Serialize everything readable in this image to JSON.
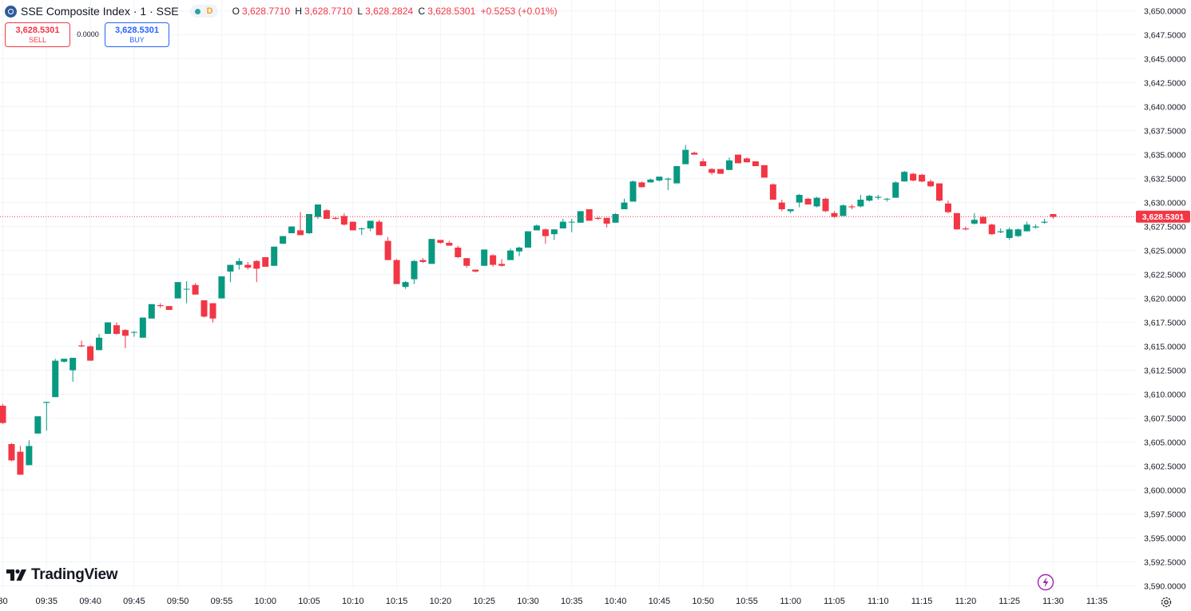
{
  "symbol": {
    "title": "SSE Composite Index · 1 · SSE",
    "market_badge": "D",
    "o_label": "O",
    "o_value": "3,628.7710",
    "h_label": "H",
    "h_value": "3,628.7710",
    "l_label": "L",
    "l_value": "3,628.2824",
    "c_label": "C",
    "c_value": "3,628.5301",
    "change": "+0.5253 (+0.01%)"
  },
  "trade": {
    "sell_price": "3,628.5301",
    "sell_label": "SELL",
    "spread": "0.0000",
    "buy_price": "3,628.5301",
    "buy_label": "BUY"
  },
  "branding": {
    "logo_text": "TradingView"
  },
  "icons": [
    "tradingview-logo-icon",
    "lightning-icon",
    "settings-gear-icon",
    "symbol-logo-icon"
  ],
  "colors": {
    "up": "#089981",
    "down": "#f23645",
    "last_price": "#f23645",
    "grid": "#f0f3fa",
    "buy": "#2962ff",
    "lightning": "#9c27b0"
  },
  "chart_data": {
    "type": "candlestick",
    "interval": "1 minute",
    "y_axis": {
      "min": 3588.5,
      "max": 3650.0,
      "tick_labels": [
        "3,650.0000",
        "3,647.5000",
        "3,645.0000",
        "3,642.5000",
        "3,640.0000",
        "3,637.5000",
        "3,635.0000",
        "3,632.5000",
        "3,630.0000",
        "3,627.5000",
        "3,625.0000",
        "3,622.5000",
        "3,620.0000",
        "3,617.5000",
        "3,615.0000",
        "3,612.5000",
        "3,610.0000",
        "3,607.5000",
        "3,605.0000",
        "3,602.5000",
        "3,600.0000",
        "3,597.5000",
        "3,595.0000",
        "3,592.5000",
        "3,590.0000"
      ]
    },
    "x_axis": {
      "tick_labels": [
        "30",
        "09:35",
        "09:40",
        "09:45",
        "09:50",
        "09:55",
        "10:00",
        "10:05",
        "10:10",
        "10:15",
        "10:20",
        "10:25",
        "10:30",
        "10:35",
        "10:40",
        "10:45",
        "10:50",
        "10:55",
        "11:00",
        "11:05",
        "11:10",
        "11:15",
        "11:20",
        "11:25",
        "11:30",
        "11:35"
      ]
    },
    "last_price": 3628.5301,
    "last_price_label": "3,628.5301",
    "grid": true,
    "candles": [
      {
        "t": "09:30",
        "o": 3608.8,
        "h": 3609.0,
        "l": 3606.9,
        "c": 3607.0
      },
      {
        "t": "09:31",
        "o": 3604.8,
        "h": 3604.9,
        "l": 3603.0,
        "c": 3603.1
      },
      {
        "t": "09:32",
        "o": 3604.0,
        "h": 3604.6,
        "l": 3601.6,
        "c": 3601.6
      },
      {
        "t": "09:33",
        "o": 3602.6,
        "h": 3605.2,
        "l": 3602.6,
        "c": 3604.6
      },
      {
        "t": "09:34",
        "o": 3605.9,
        "h": 3607.7,
        "l": 3605.9,
        "c": 3607.7
      },
      {
        "t": "09:35",
        "o": 3609.1,
        "h": 3609.2,
        "l": 3606.2,
        "c": 3609.2
      },
      {
        "t": "09:36",
        "o": 3609.7,
        "h": 3613.7,
        "l": 3609.7,
        "c": 3613.5
      },
      {
        "t": "09:37",
        "o": 3613.4,
        "h": 3613.7,
        "l": 3613.3,
        "c": 3613.7
      },
      {
        "t": "09:38",
        "o": 3612.5,
        "h": 3613.8,
        "l": 3611.3,
        "c": 3613.8
      },
      {
        "t": "09:39",
        "o": 3615.1,
        "h": 3615.6,
        "l": 3614.9,
        "c": 3615.0
      },
      {
        "t": "09:40",
        "o": 3615.0,
        "h": 3615.1,
        "l": 3613.5,
        "c": 3613.5
      },
      {
        "t": "09:41",
        "o": 3614.6,
        "h": 3616.3,
        "l": 3614.6,
        "c": 3615.9
      },
      {
        "t": "09:42",
        "o": 3616.3,
        "h": 3617.5,
        "l": 3616.3,
        "c": 3617.5
      },
      {
        "t": "09:43",
        "o": 3617.2,
        "h": 3617.5,
        "l": 3616.2,
        "c": 3616.3
      },
      {
        "t": "09:44",
        "o": 3616.7,
        "h": 3616.8,
        "l": 3614.8,
        "c": 3616.1
      },
      {
        "t": "09:45",
        "o": 3616.5,
        "h": 3616.6,
        "l": 3616.0,
        "c": 3616.5
      },
      {
        "t": "09:46",
        "o": 3615.9,
        "h": 3618.0,
        "l": 3615.9,
        "c": 3618.0
      },
      {
        "t": "09:47",
        "o": 3617.9,
        "h": 3619.4,
        "l": 3617.9,
        "c": 3619.4
      },
      {
        "t": "09:48",
        "o": 3619.3,
        "h": 3619.5,
        "l": 3619.0,
        "c": 3619.2
      },
      {
        "t": "09:49",
        "o": 3619.2,
        "h": 3619.2,
        "l": 3618.8,
        "c": 3618.8
      },
      {
        "t": "09:50",
        "o": 3620.0,
        "h": 3621.7,
        "l": 3620.0,
        "c": 3621.7
      },
      {
        "t": "09:51",
        "o": 3621.0,
        "h": 3621.8,
        "l": 3619.5,
        "c": 3621.0
      },
      {
        "t": "09:52",
        "o": 3621.4,
        "h": 3621.6,
        "l": 3620.4,
        "c": 3620.4
      },
      {
        "t": "09:53",
        "o": 3619.8,
        "h": 3619.8,
        "l": 3618.0,
        "c": 3618.1
      },
      {
        "t": "09:54",
        "o": 3619.5,
        "h": 3619.5,
        "l": 3617.5,
        "c": 3617.9
      },
      {
        "t": "09:55",
        "o": 3620.0,
        "h": 3622.3,
        "l": 3620.0,
        "c": 3622.3
      },
      {
        "t": "09:56",
        "o": 3622.8,
        "h": 3623.5,
        "l": 3621.7,
        "c": 3623.5
      },
      {
        "t": "09:57",
        "o": 3623.5,
        "h": 3624.2,
        "l": 3623.0,
        "c": 3623.9
      },
      {
        "t": "09:58",
        "o": 3623.5,
        "h": 3623.8,
        "l": 3623.0,
        "c": 3623.2
      },
      {
        "t": "09:59",
        "o": 3623.9,
        "h": 3624.0,
        "l": 3621.7,
        "c": 3623.1
      },
      {
        "t": "10:00",
        "o": 3624.3,
        "h": 3624.3,
        "l": 3623.3,
        "c": 3623.3
      },
      {
        "t": "10:01",
        "o": 3623.4,
        "h": 3625.4,
        "l": 3623.4,
        "c": 3625.4
      },
      {
        "t": "10:02",
        "o": 3625.7,
        "h": 3626.5,
        "l": 3625.7,
        "c": 3626.5
      },
      {
        "t": "10:03",
        "o": 3626.8,
        "h": 3627.5,
        "l": 3626.8,
        "c": 3627.5
      },
      {
        "t": "10:04",
        "o": 3627.1,
        "h": 3629.0,
        "l": 3626.6,
        "c": 3626.6
      },
      {
        "t": "10:05",
        "o": 3626.8,
        "h": 3628.8,
        "l": 3626.7,
        "c": 3628.8
      },
      {
        "t": "10:06",
        "o": 3628.5,
        "h": 3629.8,
        "l": 3628.3,
        "c": 3629.8
      },
      {
        "t": "10:07",
        "o": 3629.2,
        "h": 3629.3,
        "l": 3628.3,
        "c": 3628.3
      },
      {
        "t": "10:08",
        "o": 3628.4,
        "h": 3628.5,
        "l": 3628.2,
        "c": 3628.3
      },
      {
        "t": "10:09",
        "o": 3628.6,
        "h": 3628.9,
        "l": 3627.6,
        "c": 3627.7
      },
      {
        "t": "10:10",
        "o": 3628.0,
        "h": 3628.0,
        "l": 3627.1,
        "c": 3627.1
      },
      {
        "t": "10:11",
        "o": 3627.3,
        "h": 3627.4,
        "l": 3626.6,
        "c": 3627.3
      },
      {
        "t": "10:12",
        "o": 3627.3,
        "h": 3628.1,
        "l": 3627.0,
        "c": 3628.1
      },
      {
        "t": "10:13",
        "o": 3628.0,
        "h": 3628.2,
        "l": 3626.6,
        "c": 3626.6
      },
      {
        "t": "10:14",
        "o": 3626.0,
        "h": 3626.4,
        "l": 3624.0,
        "c": 3624.0
      },
      {
        "t": "10:15",
        "o": 3624.0,
        "h": 3624.1,
        "l": 3621.5,
        "c": 3621.5
      },
      {
        "t": "10:16",
        "o": 3621.2,
        "h": 3621.8,
        "l": 3621.0,
        "c": 3621.7
      },
      {
        "t": "10:17",
        "o": 3622.0,
        "h": 3624.0,
        "l": 3621.5,
        "c": 3623.9
      },
      {
        "t": "10:18",
        "o": 3624.0,
        "h": 3624.2,
        "l": 3623.7,
        "c": 3623.8
      },
      {
        "t": "10:19",
        "o": 3623.6,
        "h": 3626.2,
        "l": 3623.6,
        "c": 3626.2
      },
      {
        "t": "10:20",
        "o": 3626.1,
        "h": 3626.1,
        "l": 3625.7,
        "c": 3625.8
      },
      {
        "t": "10:21",
        "o": 3625.8,
        "h": 3626.0,
        "l": 3625.5,
        "c": 3625.5
      },
      {
        "t": "10:22",
        "o": 3625.3,
        "h": 3625.5,
        "l": 3624.2,
        "c": 3624.3
      },
      {
        "t": "10:23",
        "o": 3624.2,
        "h": 3624.2,
        "l": 3623.2,
        "c": 3623.4
      },
      {
        "t": "10:24",
        "o": 3623.0,
        "h": 3623.0,
        "l": 3622.7,
        "c": 3622.8
      },
      {
        "t": "10:25",
        "o": 3623.4,
        "h": 3625.1,
        "l": 3623.4,
        "c": 3625.1
      },
      {
        "t": "10:26",
        "o": 3624.5,
        "h": 3624.6,
        "l": 3623.3,
        "c": 3623.5
      },
      {
        "t": "10:27",
        "o": 3623.6,
        "h": 3624.1,
        "l": 3623.3,
        "c": 3623.4
      },
      {
        "t": "10:28",
        "o": 3624.0,
        "h": 3625.2,
        "l": 3624.0,
        "c": 3625.0
      },
      {
        "t": "10:29",
        "o": 3624.9,
        "h": 3625.4,
        "l": 3624.4,
        "c": 3625.3
      },
      {
        "t": "10:30",
        "o": 3625.3,
        "h": 3627.0,
        "l": 3625.3,
        "c": 3627.0
      },
      {
        "t": "10:31",
        "o": 3627.1,
        "h": 3627.7,
        "l": 3627.1,
        "c": 3627.6
      },
      {
        "t": "10:32",
        "o": 3627.2,
        "h": 3627.3,
        "l": 3625.7,
        "c": 3626.5
      },
      {
        "t": "10:33",
        "o": 3626.7,
        "h": 3627.2,
        "l": 3626.1,
        "c": 3627.2
      },
      {
        "t": "10:34",
        "o": 3627.3,
        "h": 3628.3,
        "l": 3627.3,
        "c": 3628.0
      },
      {
        "t": "10:35",
        "o": 3628.0,
        "h": 3628.3,
        "l": 3626.9,
        "c": 3628.0
      },
      {
        "t": "10:36",
        "o": 3627.9,
        "h": 3629.1,
        "l": 3627.9,
        "c": 3629.1
      },
      {
        "t": "10:37",
        "o": 3629.3,
        "h": 3629.3,
        "l": 3628.1,
        "c": 3628.1
      },
      {
        "t": "10:38",
        "o": 3628.4,
        "h": 3628.5,
        "l": 3628.2,
        "c": 3628.3
      },
      {
        "t": "10:39",
        "o": 3628.4,
        "h": 3628.4,
        "l": 3627.4,
        "c": 3627.8
      },
      {
        "t": "10:40",
        "o": 3627.9,
        "h": 3628.9,
        "l": 3627.9,
        "c": 3628.8
      },
      {
        "t": "10:41",
        "o": 3629.3,
        "h": 3630.4,
        "l": 3629.3,
        "c": 3630.0
      },
      {
        "t": "10:42",
        "o": 3630.1,
        "h": 3632.3,
        "l": 3630.1,
        "c": 3632.2
      },
      {
        "t": "10:43",
        "o": 3632.1,
        "h": 3632.2,
        "l": 3631.6,
        "c": 3631.6
      },
      {
        "t": "10:44",
        "o": 3632.1,
        "h": 3632.5,
        "l": 3632.1,
        "c": 3632.4
      },
      {
        "t": "10:45",
        "o": 3632.3,
        "h": 3632.7,
        "l": 3632.2,
        "c": 3632.7
      },
      {
        "t": "10:46",
        "o": 3632.4,
        "h": 3632.6,
        "l": 3631.3,
        "c": 3632.5
      },
      {
        "t": "10:47",
        "o": 3632.0,
        "h": 3633.8,
        "l": 3632.0,
        "c": 3633.8
      },
      {
        "t": "10:48",
        "o": 3634.0,
        "h": 3636.0,
        "l": 3634.0,
        "c": 3635.5
      },
      {
        "t": "10:49",
        "o": 3635.2,
        "h": 3635.3,
        "l": 3635.0,
        "c": 3635.0
      },
      {
        "t": "10:50",
        "o": 3634.3,
        "h": 3634.6,
        "l": 3633.8,
        "c": 3633.8
      },
      {
        "t": "10:51",
        "o": 3633.5,
        "h": 3633.6,
        "l": 3632.9,
        "c": 3633.1
      },
      {
        "t": "10:52",
        "o": 3633.5,
        "h": 3633.5,
        "l": 3633.0,
        "c": 3633.0
      },
      {
        "t": "10:53",
        "o": 3633.4,
        "h": 3634.7,
        "l": 3633.4,
        "c": 3634.4
      },
      {
        "t": "10:54",
        "o": 3635.0,
        "h": 3635.0,
        "l": 3634.1,
        "c": 3634.1
      },
      {
        "t": "10:55",
        "o": 3634.6,
        "h": 3634.7,
        "l": 3634.2,
        "c": 3634.2
      },
      {
        "t": "10:56",
        "o": 3634.3,
        "h": 3634.3,
        "l": 3633.8,
        "c": 3633.8
      },
      {
        "t": "10:57",
        "o": 3633.9,
        "h": 3633.9,
        "l": 3632.6,
        "c": 3632.6
      },
      {
        "t": "10:58",
        "o": 3631.9,
        "h": 3632.0,
        "l": 3630.3,
        "c": 3630.3
      },
      {
        "t": "10:59",
        "o": 3630.0,
        "h": 3630.3,
        "l": 3629.1,
        "c": 3629.3
      },
      {
        "t": "11:00",
        "o": 3629.1,
        "h": 3629.3,
        "l": 3628.9,
        "c": 3629.3
      },
      {
        "t": "11:01",
        "o": 3630.0,
        "h": 3630.9,
        "l": 3629.5,
        "c": 3630.8
      },
      {
        "t": "11:02",
        "o": 3630.4,
        "h": 3630.5,
        "l": 3629.8,
        "c": 3629.8
      },
      {
        "t": "11:03",
        "o": 3629.6,
        "h": 3630.6,
        "l": 3629.5,
        "c": 3630.5
      },
      {
        "t": "11:04",
        "o": 3630.4,
        "h": 3630.5,
        "l": 3629.0,
        "c": 3629.1
      },
      {
        "t": "11:05",
        "o": 3628.9,
        "h": 3629.1,
        "l": 3628.4,
        "c": 3628.5
      },
      {
        "t": "11:06",
        "o": 3628.6,
        "h": 3629.8,
        "l": 3628.6,
        "c": 3629.7
      },
      {
        "t": "11:07",
        "o": 3629.6,
        "h": 3629.8,
        "l": 3629.3,
        "c": 3629.5
      },
      {
        "t": "11:08",
        "o": 3629.6,
        "h": 3630.8,
        "l": 3629.5,
        "c": 3630.3
      },
      {
        "t": "11:09",
        "o": 3630.2,
        "h": 3630.8,
        "l": 3630.1,
        "c": 3630.7
      },
      {
        "t": "11:10",
        "o": 3630.5,
        "h": 3630.8,
        "l": 3630.3,
        "c": 3630.6
      },
      {
        "t": "11:11",
        "o": 3630.4,
        "h": 3630.5,
        "l": 3630.1,
        "c": 3630.4
      },
      {
        "t": "11:12",
        "o": 3630.5,
        "h": 3632.2,
        "l": 3630.5,
        "c": 3632.1
      },
      {
        "t": "11:13",
        "o": 3632.2,
        "h": 3633.3,
        "l": 3632.2,
        "c": 3633.2
      },
      {
        "t": "11:14",
        "o": 3633.0,
        "h": 3633.1,
        "l": 3632.2,
        "c": 3632.3
      },
      {
        "t": "11:15",
        "o": 3632.9,
        "h": 3633.0,
        "l": 3632.1,
        "c": 3632.2
      },
      {
        "t": "11:16",
        "o": 3632.2,
        "h": 3632.4,
        "l": 3631.6,
        "c": 3631.7
      },
      {
        "t": "11:17",
        "o": 3632.0,
        "h": 3632.0,
        "l": 3630.1,
        "c": 3630.2
      },
      {
        "t": "11:18",
        "o": 3629.9,
        "h": 3630.2,
        "l": 3628.9,
        "c": 3629.0
      },
      {
        "t": "11:19",
        "o": 3628.9,
        "h": 3628.9,
        "l": 3627.2,
        "c": 3627.2
      },
      {
        "t": "11:20",
        "o": 3627.3,
        "h": 3627.5,
        "l": 3627.1,
        "c": 3627.2
      },
      {
        "t": "11:21",
        "o": 3627.8,
        "h": 3628.9,
        "l": 3627.7,
        "c": 3628.2
      },
      {
        "t": "11:22",
        "o": 3628.5,
        "h": 3628.6,
        "l": 3627.8,
        "c": 3627.8
      },
      {
        "t": "11:23",
        "o": 3627.7,
        "h": 3627.8,
        "l": 3626.6,
        "c": 3626.7
      },
      {
        "t": "11:24",
        "o": 3626.9,
        "h": 3627.3,
        "l": 3626.8,
        "c": 3627.0
      },
      {
        "t": "11:25",
        "o": 3626.3,
        "h": 3627.4,
        "l": 3626.1,
        "c": 3627.2
      },
      {
        "t": "11:26",
        "o": 3626.5,
        "h": 3627.3,
        "l": 3626.4,
        "c": 3627.2
      },
      {
        "t": "11:27",
        "o": 3627.0,
        "h": 3628.0,
        "l": 3627.0,
        "c": 3627.7
      },
      {
        "t": "11:28",
        "o": 3627.4,
        "h": 3627.7,
        "l": 3627.3,
        "c": 3627.5
      },
      {
        "t": "11:29",
        "o": 3627.9,
        "h": 3628.3,
        "l": 3627.8,
        "c": 3628.0
      },
      {
        "t": "11:30",
        "o": 3628.8,
        "h": 3628.8,
        "l": 3628.3,
        "c": 3628.5
      }
    ]
  }
}
